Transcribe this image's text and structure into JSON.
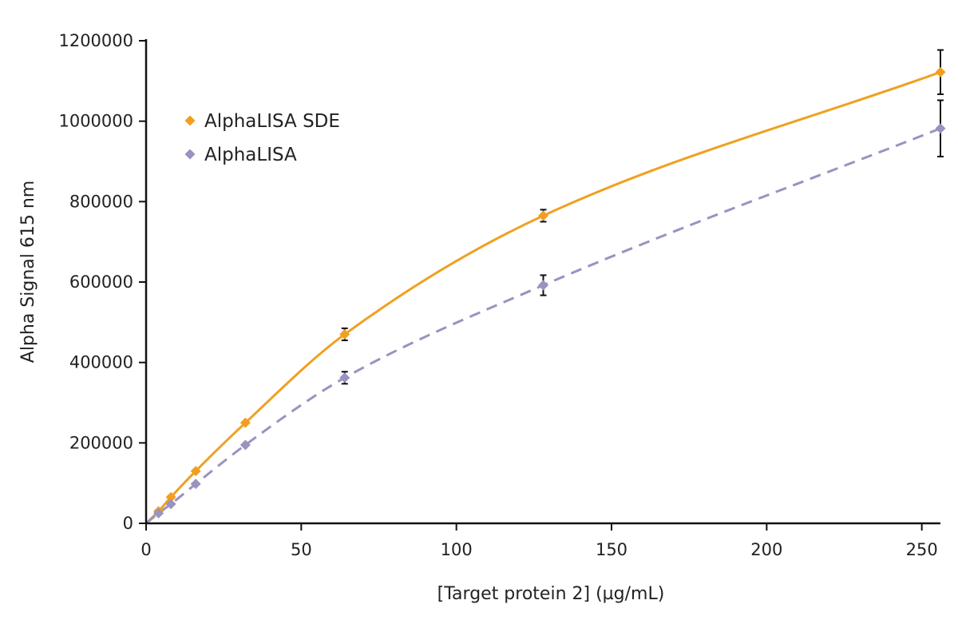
{
  "chart_data": {
    "type": "scatter",
    "xlabel": "[Target protein 2] (µg/mL)",
    "ylabel": "Alpha Signal 615 nm",
    "xlim": [
      0,
      256
    ],
    "ylim": [
      0,
      1200000
    ],
    "xticks": [
      "0",
      "50",
      "100",
      "150",
      "200",
      "250"
    ],
    "yticks": [
      "0",
      "200000",
      "400000",
      "600000",
      "800000",
      "1000000",
      "1200000"
    ],
    "legend_position": "top-left",
    "grid": false,
    "series": [
      {
        "name": "AlphaLISA SDE",
        "color": "#f0a020",
        "line_style": "solid",
        "marker": "diamond",
        "x": [
          0,
          4,
          8,
          16,
          32,
          64,
          128,
          256
        ],
        "y": [
          0,
          30000,
          65000,
          130000,
          250000,
          470000,
          765000,
          1122000
        ],
        "err": [
          0,
          0,
          0,
          0,
          0,
          15000,
          15000,
          55000
        ]
      },
      {
        "name": "AlphaLISA",
        "color": "#9893c0",
        "line_style": "dashed",
        "marker": "diamond",
        "x": [
          0,
          4,
          8,
          16,
          32,
          64,
          128,
          256
        ],
        "y": [
          0,
          25000,
          48000,
          98000,
          195000,
          362000,
          592000,
          982000
        ],
        "err": [
          0,
          0,
          0,
          0,
          0,
          15000,
          25000,
          70000
        ]
      }
    ]
  }
}
